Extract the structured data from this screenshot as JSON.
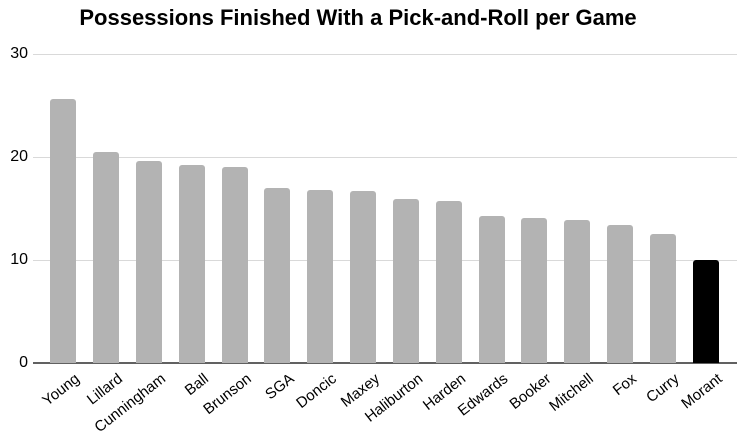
{
  "chart_data": {
    "type": "bar",
    "title": "Possessions Finished With a Pick-and-Roll per Game",
    "categories": [
      "Young",
      "Lillard",
      "Cunningham",
      "Ball",
      "Brunson",
      "SGA",
      "Doncic",
      "Maxey",
      "Haliburton",
      "Harden",
      "Edwards",
      "Booker",
      "Mitchell",
      "Fox",
      "Curry",
      "Morant"
    ],
    "values": [
      25.6,
      20.5,
      19.6,
      19.2,
      19.0,
      17.0,
      16.8,
      16.7,
      15.9,
      15.7,
      14.3,
      14.1,
      13.9,
      13.4,
      12.5,
      10.0
    ],
    "highlight_category": "Morant",
    "highlight_index": 15,
    "xlabel": "",
    "ylabel": "",
    "ylim": [
      0,
      30
    ],
    "yticks": [
      0,
      10,
      20,
      30
    ],
    "grid": true,
    "legend": false
  },
  "colors": {
    "background": "#ffffff",
    "bar_default": "#b3b3b3",
    "bar_highlight": "#000000",
    "gridline": "#d9d9d9",
    "axis_line": "#616161",
    "label_text": "#000000"
  }
}
